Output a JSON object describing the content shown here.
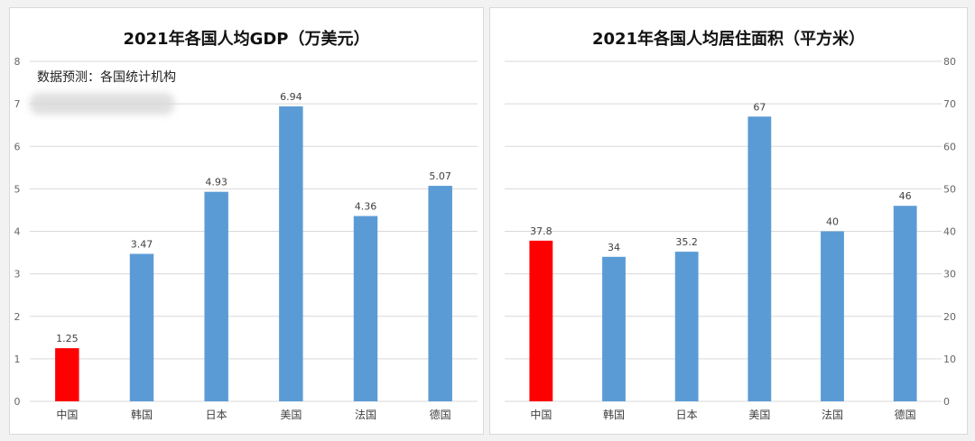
{
  "colors": {
    "bar": "#5b9bd5",
    "highlight": "#ff0000",
    "grid": "#d9d9d9",
    "tick": "#666666",
    "label": "#404040"
  },
  "chart_data": [
    {
      "type": "bar",
      "title": "2021年各国人均GDP（万美元）",
      "note": "数据预测：各国统计机构",
      "categories": [
        "中国",
        "韩国",
        "日本",
        "美国",
        "法国",
        "德国"
      ],
      "values": [
        1.25,
        3.47,
        4.93,
        6.94,
        4.36,
        5.07
      ],
      "data_labels": [
        "1.25",
        "3.47",
        "4.93",
        "6.94",
        "4.36",
        "5.07"
      ],
      "highlight_index": 0,
      "ylim": [
        0,
        8
      ],
      "yticks": [
        0,
        1,
        2,
        3,
        4,
        5,
        6,
        7,
        8
      ],
      "y_axis_side": "left",
      "grid": true
    },
    {
      "type": "bar",
      "title": "2021年各国人均居住面积（平方米）",
      "categories": [
        "中国",
        "韩国",
        "日本",
        "美国",
        "法国",
        "德国"
      ],
      "values": [
        37.8,
        34,
        35.2,
        67,
        40,
        46
      ],
      "data_labels": [
        "37.8",
        "34",
        "35.2",
        "67",
        "40",
        "46"
      ],
      "highlight_index": 0,
      "ylim": [
        0,
        80
      ],
      "yticks": [
        0,
        10,
        20,
        30,
        40,
        50,
        60,
        70,
        80
      ],
      "y_axis_side": "right",
      "grid": true
    }
  ]
}
